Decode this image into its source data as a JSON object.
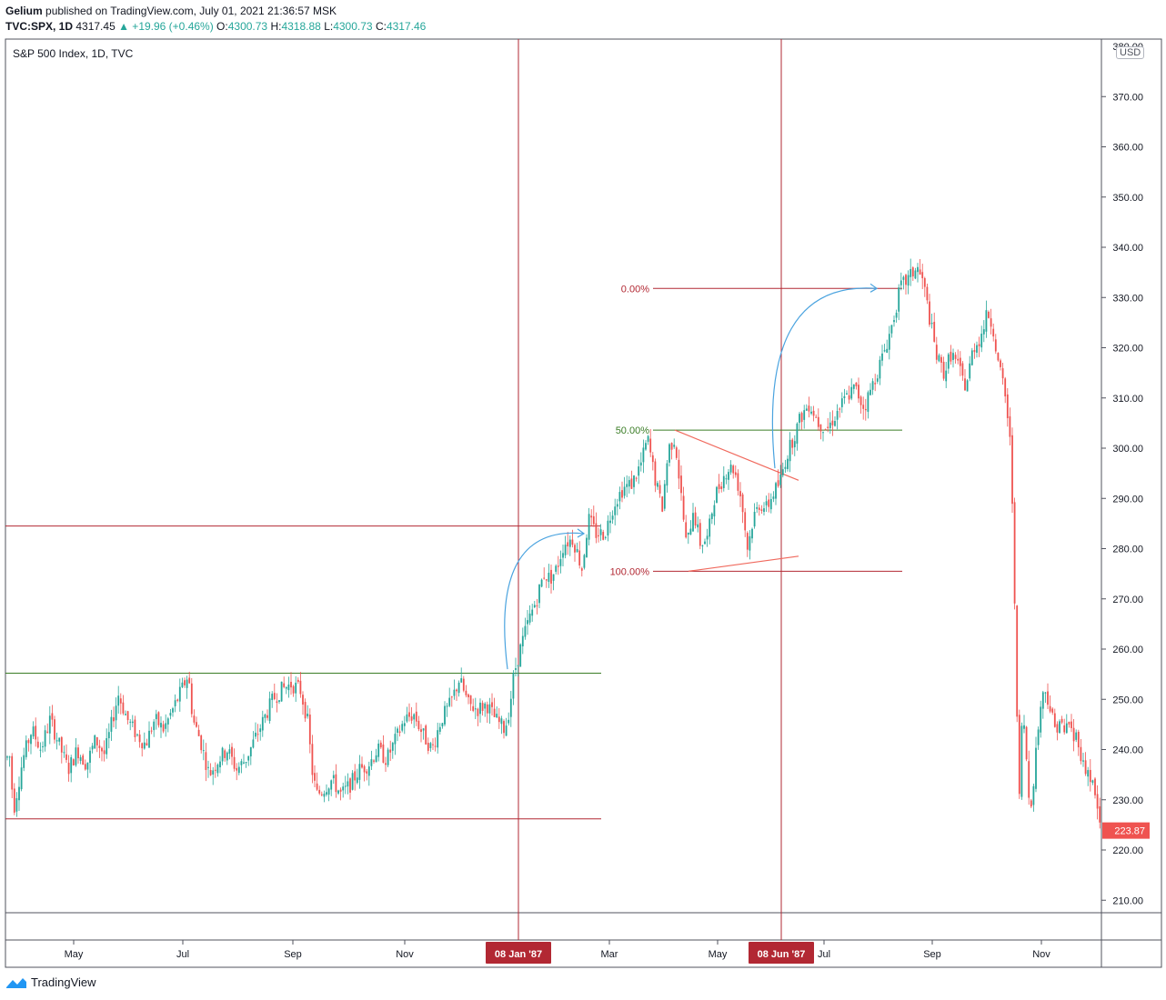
{
  "header": {
    "publisher": "Gelium",
    "published_text": "published on TradingView.com, July 01, 2021 21:36:57 MSK",
    "symbol": "TVC:SPX, 1D",
    "last": "4317.45",
    "change": "▲ +19.96 (+0.46%)",
    "o_label": "O:",
    "o": "4300.73",
    "h_label": "H:",
    "h": "4318.88",
    "l_label": "L:",
    "l": "4300.73",
    "c_label": "C:",
    "c": "4317.46"
  },
  "legend_title": "S&P 500 Index, 1D, TVC",
  "currency": "USD",
  "footer": {
    "brand": "TradingView"
  },
  "colors": {
    "up": "#26a69a",
    "down": "#ef5350",
    "dark_red": "#b22833",
    "green_line": "#3a7d26",
    "arrow": "#4aa3df",
    "triangle": "#f0695d"
  },
  "chart_data": {
    "type": "candlestick",
    "title": "S&P 500 Index, 1D, TVC",
    "ylim": [
      207,
      381
    ],
    "y_ticks": [
      210,
      220,
      230,
      240,
      250,
      260,
      270,
      280,
      290,
      300,
      310,
      320,
      330,
      340,
      350,
      360,
      370
    ],
    "x_labels": [
      "May",
      "Jul",
      "Sep",
      "Nov",
      "Mar",
      "May",
      "Jul",
      "Sep",
      "Nov"
    ],
    "highlighted_dates": [
      "08 Jan '87",
      "08 Jun '87"
    ],
    "last_price": "223.87",
    "price_path": [
      [
        0,
        242
      ],
      [
        5,
        236
      ],
      [
        10,
        240
      ],
      [
        15,
        228
      ],
      [
        25,
        238
      ],
      [
        35,
        244
      ],
      [
        45,
        240
      ],
      [
        55,
        246
      ],
      [
        65,
        241
      ],
      [
        75,
        236
      ],
      [
        85,
        240
      ],
      [
        95,
        237
      ],
      [
        105,
        242
      ],
      [
        115,
        239
      ],
      [
        125,
        247
      ],
      [
        130,
        251
      ],
      [
        140,
        246
      ],
      [
        150,
        243
      ],
      [
        160,
        241
      ],
      [
        170,
        246
      ],
      [
        180,
        244
      ],
      [
        190,
        248
      ],
      [
        200,
        252
      ],
      [
        207,
        255
      ],
      [
        212,
        246
      ],
      [
        220,
        242
      ],
      [
        230,
        235
      ],
      [
        240,
        238
      ],
      [
        250,
        240
      ],
      [
        260,
        236
      ],
      [
        270,
        238
      ],
      [
        280,
        242
      ],
      [
        290,
        246
      ],
      [
        300,
        250
      ],
      [
        310,
        252
      ],
      [
        320,
        253
      ],
      [
        330,
        252
      ],
      [
        338,
        246
      ],
      [
        343,
        236
      ],
      [
        348,
        231
      ],
      [
        355,
        232
      ],
      [
        365,
        234
      ],
      [
        375,
        231
      ],
      [
        385,
        233
      ],
      [
        395,
        236
      ],
      [
        405,
        237
      ],
      [
        415,
        240
      ],
      [
        425,
        238
      ],
      [
        435,
        242
      ],
      [
        445,
        246
      ],
      [
        455,
        247
      ],
      [
        465,
        243
      ],
      [
        475,
        240
      ],
      [
        485,
        246
      ],
      [
        495,
        249
      ],
      [
        505,
        254
      ],
      [
        515,
        249
      ],
      [
        525,
        248
      ],
      [
        535,
        249
      ],
      [
        545,
        246
      ],
      [
        555,
        244
      ],
      [
        560,
        248
      ],
      [
        565,
        255
      ],
      [
        572,
        260
      ],
      [
        580,
        265
      ],
      [
        590,
        270
      ],
      [
        598,
        275
      ],
      [
        605,
        274
      ],
      [
        612,
        276
      ],
      [
        620,
        281
      ],
      [
        630,
        282
      ],
      [
        640,
        276
      ],
      [
        647,
        286
      ],
      [
        655,
        283
      ],
      [
        665,
        283
      ],
      [
        675,
        289
      ],
      [
        685,
        292
      ],
      [
        695,
        293
      ],
      [
        705,
        297
      ],
      [
        712,
        302
      ],
      [
        720,
        294
      ],
      [
        728,
        288
      ],
      [
        735,
        300
      ],
      [
        742,
        302
      ],
      [
        748,
        292
      ],
      [
        755,
        280
      ],
      [
        762,
        288
      ],
      [
        770,
        281
      ],
      [
        778,
        282
      ],
      [
        785,
        290
      ],
      [
        792,
        293
      ],
      [
        800,
        296
      ],
      [
        807,
        296
      ],
      [
        815,
        290
      ],
      [
        822,
        280
      ],
      [
        828,
        286
      ],
      [
        835,
        289
      ],
      [
        843,
        288
      ],
      [
        850,
        291
      ],
      [
        857,
        293
      ],
      [
        864,
        298
      ],
      [
        872,
        302
      ],
      [
        880,
        306
      ],
      [
        890,
        309
      ],
      [
        900,
        305
      ],
      [
        910,
        304
      ],
      [
        920,
        307
      ],
      [
        930,
        310
      ],
      [
        940,
        312
      ],
      [
        950,
        308
      ],
      [
        960,
        313
      ],
      [
        970,
        318
      ],
      [
        980,
        324
      ],
      [
        990,
        332
      ],
      [
        1000,
        334
      ],
      [
        1008,
        336
      ],
      [
        1015,
        333
      ],
      [
        1022,
        326
      ],
      [
        1030,
        318
      ],
      [
        1038,
        315
      ],
      [
        1046,
        319
      ],
      [
        1054,
        316
      ],
      [
        1062,
        312
      ],
      [
        1070,
        320
      ],
      [
        1078,
        322
      ],
      [
        1086,
        327
      ],
      [
        1092,
        324
      ],
      [
        1098,
        316
      ],
      [
        1104,
        312
      ],
      [
        1110,
        303
      ],
      [
        1114,
        285
      ],
      [
        1117,
        258
      ],
      [
        1120,
        226
      ],
      [
        1124,
        248
      ],
      [
        1128,
        240
      ],
      [
        1132,
        228
      ],
      [
        1136,
        233
      ],
      [
        1140,
        242
      ],
      [
        1145,
        250
      ],
      [
        1150,
        252
      ],
      [
        1155,
        248
      ],
      [
        1160,
        244
      ],
      [
        1165,
        246
      ],
      [
        1170,
        243
      ],
      [
        1175,
        246
      ],
      [
        1180,
        242
      ],
      [
        1185,
        243
      ],
      [
        1190,
        237
      ],
      [
        1195,
        236
      ],
      [
        1200,
        234
      ],
      [
        1205,
        230
      ],
      [
        1210,
        224
      ]
    ],
    "vertical_lines": [
      "08 Jan '87",
      "08 Jun '87"
    ],
    "horizontal_levels": [
      {
        "value": 284.5,
        "color": "dark_red",
        "span": "left"
      },
      {
        "value": 255.2,
        "color": "green",
        "span": "left"
      },
      {
        "value": 226.2,
        "color": "dark_red",
        "span": "left"
      }
    ],
    "fibonacci": [
      {
        "label": "0.00%",
        "value": 331.8
      },
      {
        "label": "50.00%",
        "value": 303.6
      },
      {
        "label": "100.00%",
        "value": 275.5
      }
    ],
    "triangle": {
      "upper": [
        [
          742,
          303.6
        ],
        [
          878,
          293.6
        ]
      ],
      "lower": [
        [
          757,
          275.5
        ],
        [
          878,
          278.5
        ]
      ]
    },
    "arrows": [
      {
        "from": [
          558,
          256
        ],
        "to": [
          642,
          283
        ]
      },
      {
        "from": [
          852,
          296
        ],
        "to": [
          964,
          331.8
        ]
      }
    ]
  }
}
